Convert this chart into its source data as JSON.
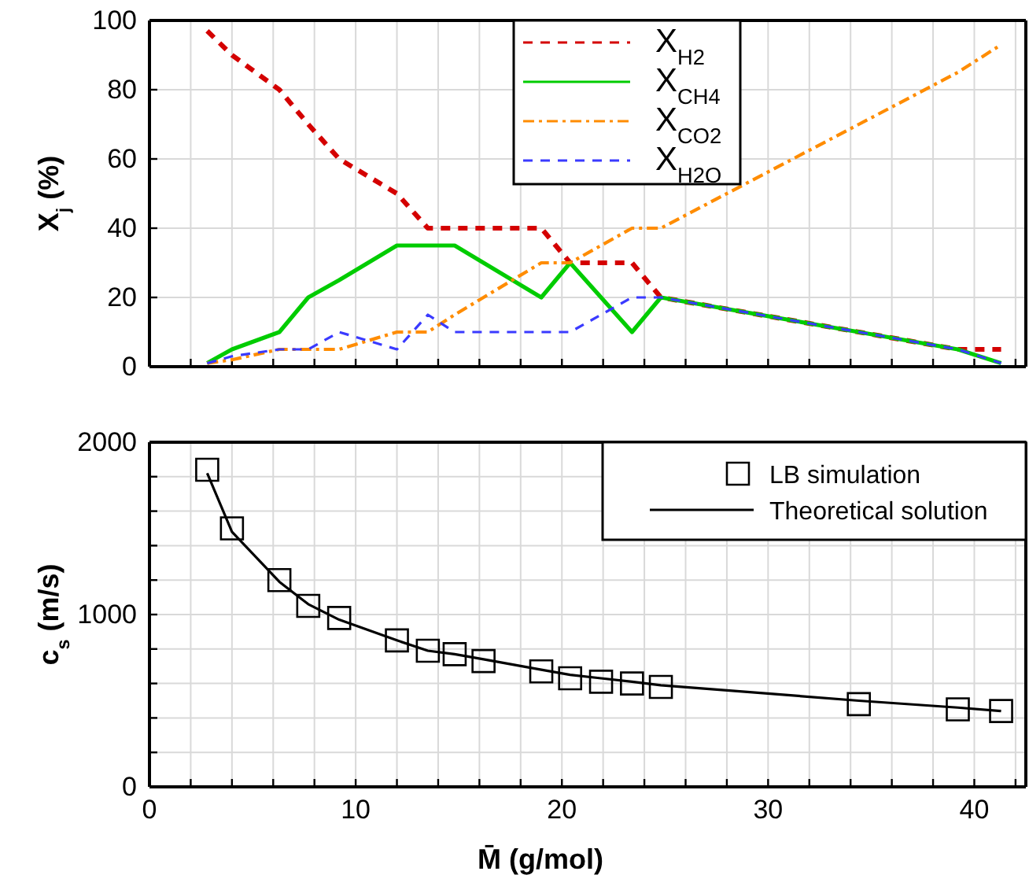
{
  "chart_data": [
    {
      "type": "line",
      "ylabel": "X$_{j}$ (%)",
      "x": [
        2.8,
        4,
        6.3,
        7.7,
        9.2,
        12,
        13.5,
        14.8,
        16.2,
        19,
        20.4,
        21.9,
        23.4,
        24.8,
        34.4,
        39.2,
        41.3
      ],
      "series": [
        {
          "name": "X$_{H2}$",
          "color": "#d40000",
          "line_style": "dashed",
          "values": [
            97,
            90,
            80,
            70,
            60,
            50,
            40,
            40,
            40,
            40,
            30,
            30,
            30,
            20,
            10,
            5,
            5
          ]
        },
        {
          "name": "X$_{CH4}$",
          "color": "#00cc00",
          "line_style": "solid",
          "values": [
            1,
            5,
            10,
            20,
            25,
            35,
            35,
            35,
            30,
            20,
            30,
            20,
            10,
            20,
            10,
            5,
            1
          ]
        },
        {
          "name": "X$_{CO2}$",
          "color": "#ff8c00",
          "line_style": "dashdot",
          "values": [
            1,
            2,
            5,
            5,
            5,
            10,
            10,
            15,
            20,
            30,
            30,
            35,
            40,
            40,
            70,
            85,
            93
          ]
        },
        {
          "name": "X$_{H2O}$",
          "color": "#3a3aff",
          "line_style": "dashed",
          "values": [
            1,
            3,
            5,
            5,
            10,
            5,
            15,
            10,
            10,
            10,
            10,
            15,
            20,
            20,
            10,
            5,
            1
          ]
        }
      ],
      "xlim": [
        0,
        42.5
      ],
      "xticks": [
        0,
        {
          "value": 2,
          "label": null
        },
        {
          "value": 4,
          "label": null
        },
        {
          "value": 6,
          "label": null
        },
        {
          "value": 8,
          "label": null
        },
        10,
        {
          "value": 12,
          "label": null
        },
        {
          "value": 14,
          "label": null
        },
        {
          "value": 16,
          "label": null
        },
        {
          "value": 18,
          "label": null
        },
        20,
        {
          "value": 22,
          "label": null
        },
        {
          "value": 24,
          "label": null
        },
        {
          "value": 26,
          "label": null
        },
        {
          "value": 28,
          "label": null
        },
        30,
        {
          "value": 32,
          "label": null
        },
        {
          "value": 34,
          "label": null
        },
        {
          "value": 36,
          "label": null
        },
        {
          "value": 38,
          "label": null
        },
        40,
        {
          "value": 42,
          "label": null
        }
      ],
      "ylim": [
        0,
        100
      ],
      "yticks": [
        0,
        20,
        40,
        60,
        80,
        100
      ],
      "tick_labels": "y",
      "grid": true,
      "legend": "top"
    },
    {
      "type": "scatter",
      "xlabel": "M̄ (g/mol)",
      "ylabel": "c$_{s}$ (m/s)",
      "x": [
        2.8,
        4,
        6.3,
        7.7,
        9.2,
        12,
        13.5,
        14.8,
        16.2,
        19,
        20.4,
        21.9,
        23.4,
        24.8,
        34.4,
        39.2,
        41.3
      ],
      "series": [
        {
          "name": "LB simulation",
          "marker": "square",
          "color": "#000000",
          "values": [
            1840,
            1500,
            1200,
            1050,
            980,
            850,
            790,
            770,
            730,
            670,
            630,
            610,
            600,
            580,
            480,
            450,
            440
          ]
        },
        {
          "name": "Theoretical solution",
          "type": "line",
          "color": "#000000",
          "line_style": "solid",
          "x": [
            2.8,
            4,
            6.3,
            7.7,
            9.2,
            12,
            13.5,
            14.8,
            16.2,
            19,
            20.4,
            21.9,
            23.4,
            24.8,
            34.4,
            39.2,
            41.3
          ],
          "values": [
            1820,
            1480,
            1190,
            1060,
            970,
            850,
            790,
            770,
            740,
            680,
            650,
            630,
            610,
            590,
            500,
            460,
            440
          ]
        }
      ],
      "xlim": [
        0,
        42.5
      ],
      "xticks": [
        0,
        {
          "value": 2,
          "label": null
        },
        {
          "value": 4,
          "label": null
        },
        {
          "value": 6,
          "label": null
        },
        {
          "value": 8,
          "label": null
        },
        10,
        {
          "value": 12,
          "label": null
        },
        {
          "value": 14,
          "label": null
        },
        {
          "value": 16,
          "label": null
        },
        {
          "value": 18,
          "label": null
        },
        20,
        {
          "value": 22,
          "label": null
        },
        {
          "value": 24,
          "label": null
        },
        {
          "value": 26,
          "label": null
        },
        {
          "value": 28,
          "label": null
        },
        30,
        {
          "value": 32,
          "label": null
        },
        {
          "value": 34,
          "label": null
        },
        {
          "value": 36,
          "label": null
        },
        {
          "value": 38,
          "label": null
        },
        40,
        {
          "value": 42,
          "label": null
        }
      ],
      "ylim": [
        0,
        2000
      ],
      "yticks": [
        0,
        {
          "value": 200,
          "label": null
        },
        {
          "value": 400,
          "label": null
        },
        {
          "value": 600,
          "label": null
        },
        {
          "value": 800,
          "label": null
        },
        1000,
        {
          "value": 1200,
          "label": null
        },
        {
          "value": 1400,
          "label": null
        },
        {
          "value": 1600,
          "label": null
        },
        {
          "value": 1800,
          "label": null
        },
        2000
      ],
      "grid": true,
      "legend": "top right"
    }
  ]
}
